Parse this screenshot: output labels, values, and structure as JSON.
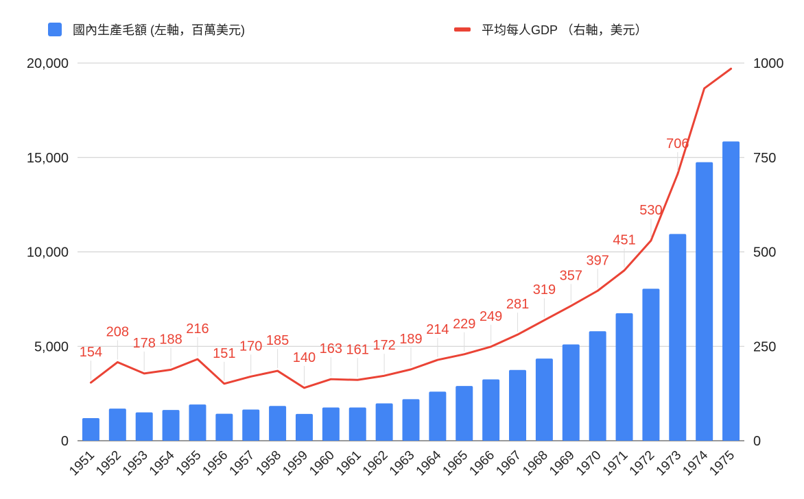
{
  "chart_data": {
    "type": "bar",
    "categories": [
      "1951",
      "1952",
      "1953",
      "1954",
      "1955",
      "1956",
      "1957",
      "1958",
      "1959",
      "1960",
      "1961",
      "1962",
      "1963",
      "1964",
      "1965",
      "1966",
      "1967",
      "1968",
      "1969",
      "1970",
      "1971",
      "1972",
      "1973",
      "1974",
      "1975"
    ],
    "series": [
      {
        "name": "國內生產毛額 (左軸，百萬美元)",
        "chart_type": "bar",
        "axis": "left",
        "color": "#4285f4",
        "values": [
          1200,
          1700,
          1500,
          1630,
          1920,
          1430,
          1650,
          1840,
          1420,
          1760,
          1760,
          1980,
          2200,
          2600,
          2900,
          3250,
          3750,
          4350,
          5100,
          5800,
          6750,
          8050,
          10950,
          14750,
          15850
        ]
      },
      {
        "name": "平均每人GDP （右軸，美元）",
        "chart_type": "line",
        "axis": "right",
        "color": "#ea4335",
        "values": [
          154,
          208,
          178,
          188,
          216,
          151,
          170,
          185,
          140,
          163,
          161,
          172,
          189,
          214,
          229,
          249,
          281,
          319,
          357,
          397,
          451,
          530,
          706,
          933,
          985
        ],
        "data_labels": [
          "154",
          "208",
          "178",
          "188",
          "216",
          "151",
          "170",
          "185",
          "140",
          "163",
          "161",
          "172",
          "189",
          "214",
          "229",
          "249",
          "281",
          "319",
          "357",
          "397",
          "451",
          "530",
          "706",
          "",
          ""
        ]
      }
    ],
    "y_left": {
      "ylim": [
        0,
        20000
      ],
      "ticks": [
        "0",
        "5,000",
        "10,000",
        "15,000",
        "20,000"
      ]
    },
    "y_right": {
      "ylim": [
        0,
        1000
      ],
      "ticks": [
        "0",
        "250",
        "500",
        "750",
        "1000"
      ]
    },
    "grid": true,
    "legend_position": "top"
  }
}
